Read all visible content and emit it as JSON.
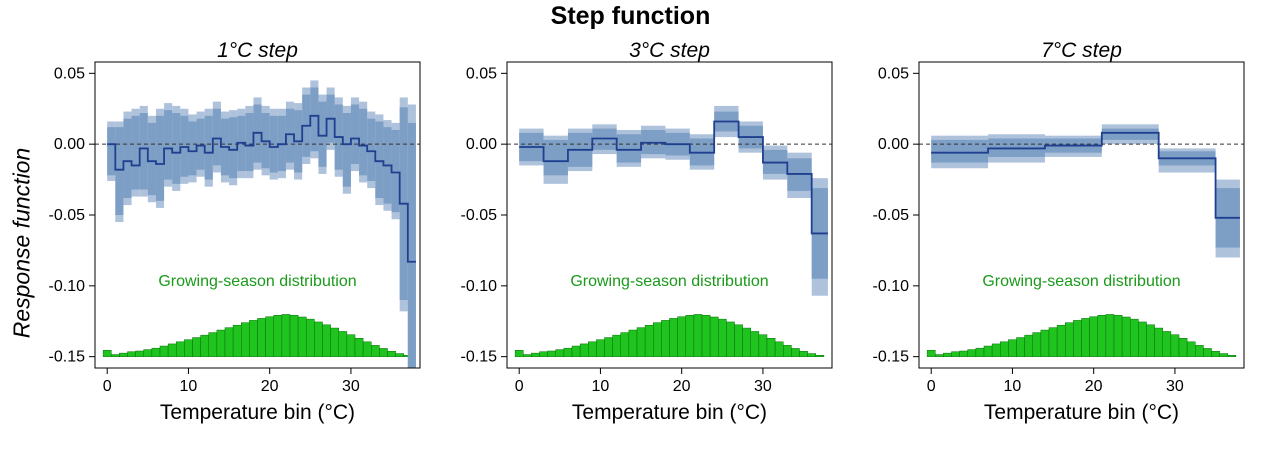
{
  "title": "Step function",
  "ylabel": "Response function",
  "colors": {
    "ci_outer": "#aec2dc",
    "ci_inner": "#7d9fc6",
    "line": "#1f3f8f",
    "bars": "#1fc41f",
    "bar_edge": "#0a6e0a",
    "dist_label": "#1a9a1a"
  },
  "chart_data": [
    {
      "type": "step",
      "title": "1°C step",
      "xlabel": "Temperature bin (°C)",
      "ylabel": "Response function",
      "xlim": [
        -1.5,
        38.5
      ],
      "ylim": [
        -0.158,
        0.058
      ],
      "xticks": [
        0,
        10,
        20,
        30
      ],
      "yticks": [
        0.05,
        0.0,
        -0.05,
        -0.1,
        -0.15
      ],
      "ytick_labels": [
        "0.05",
        "0.00",
        "-0.05",
        "-0.10",
        "-0.15"
      ],
      "reference_line": 0.0,
      "dist_label": "Growing-season distribution",
      "bins": [
        [
          0,
          1
        ],
        [
          1,
          2
        ],
        [
          2,
          3
        ],
        [
          3,
          4
        ],
        [
          4,
          5
        ],
        [
          5,
          6
        ],
        [
          6,
          7
        ],
        [
          7,
          8
        ],
        [
          8,
          9
        ],
        [
          9,
          10
        ],
        [
          10,
          11
        ],
        [
          11,
          12
        ],
        [
          12,
          13
        ],
        [
          13,
          14
        ],
        [
          14,
          15
        ],
        [
          15,
          16
        ],
        [
          16,
          17
        ],
        [
          17,
          18
        ],
        [
          18,
          19
        ],
        [
          19,
          20
        ],
        [
          20,
          21
        ],
        [
          21,
          22
        ],
        [
          22,
          23
        ],
        [
          23,
          24
        ],
        [
          24,
          25
        ],
        [
          25,
          26
        ],
        [
          26,
          27
        ],
        [
          27,
          28
        ],
        [
          28,
          29
        ],
        [
          29,
          30
        ],
        [
          30,
          31
        ],
        [
          31,
          32
        ],
        [
          32,
          33
        ],
        [
          33,
          34
        ],
        [
          34,
          35
        ],
        [
          35,
          36
        ],
        [
          36,
          37
        ],
        [
          37,
          38
        ]
      ],
      "values": [
        0.0,
        -0.018,
        -0.012,
        -0.015,
        -0.003,
        -0.012,
        -0.014,
        -0.003,
        -0.006,
        -0.002,
        -0.005,
        -0.001,
        -0.006,
        0.004,
        -0.002,
        -0.004,
        0.001,
        -0.001,
        0.008,
        0.002,
        -0.002,
        0.0,
        0.007,
        0.002,
        0.013,
        0.02,
        0.006,
        0.018,
        0.005,
        0.0,
        0.004,
        -0.001,
        -0.005,
        -0.012,
        -0.015,
        -0.02,
        -0.042,
        -0.083
      ],
      "ci_inner_upper": [
        0.012,
        0.012,
        0.018,
        0.02,
        0.022,
        0.015,
        0.02,
        0.024,
        0.022,
        0.02,
        0.016,
        0.018,
        0.02,
        0.025,
        0.018,
        0.019,
        0.02,
        0.022,
        0.028,
        0.022,
        0.02,
        0.02,
        0.025,
        0.024,
        0.035,
        0.04,
        0.03,
        0.035,
        0.028,
        0.022,
        0.028,
        0.025,
        0.018,
        0.016,
        0.012,
        0.01,
        0.026,
        0.015
      ],
      "ci_inner_lower": [
        -0.022,
        -0.05,
        -0.038,
        -0.032,
        -0.032,
        -0.036,
        -0.04,
        -0.025,
        -0.028,
        -0.023,
        -0.022,
        -0.018,
        -0.025,
        -0.015,
        -0.022,
        -0.024,
        -0.019,
        -0.019,
        -0.013,
        -0.017,
        -0.02,
        -0.019,
        -0.013,
        -0.02,
        -0.009,
        -0.005,
        -0.016,
        0.001,
        -0.018,
        -0.03,
        -0.014,
        -0.022,
        -0.026,
        -0.038,
        -0.042,
        -0.048,
        -0.11,
        -0.158
      ],
      "ci_outer_upper": [
        0.016,
        0.016,
        0.023,
        0.025,
        0.027,
        0.02,
        0.025,
        0.029,
        0.027,
        0.025,
        0.021,
        0.023,
        0.025,
        0.03,
        0.023,
        0.024,
        0.025,
        0.027,
        0.033,
        0.027,
        0.025,
        0.025,
        0.03,
        0.029,
        0.04,
        0.045,
        0.035,
        0.04,
        0.033,
        0.027,
        0.033,
        0.03,
        0.023,
        0.021,
        0.017,
        0.015,
        0.033,
        0.028
      ],
      "ci_outer_lower": [
        -0.026,
        -0.055,
        -0.043,
        -0.037,
        -0.037,
        -0.041,
        -0.045,
        -0.03,
        -0.033,
        -0.028,
        -0.027,
        -0.023,
        -0.03,
        -0.02,
        -0.027,
        -0.029,
        -0.024,
        -0.024,
        -0.018,
        -0.022,
        -0.025,
        -0.024,
        -0.018,
        -0.025,
        -0.014,
        -0.01,
        -0.021,
        -0.004,
        -0.023,
        -0.035,
        -0.019,
        -0.027,
        -0.031,
        -0.043,
        -0.047,
        -0.053,
        -0.118,
        -0.158
      ]
    },
    {
      "type": "step",
      "title": "3°C step",
      "xlabel": "Temperature bin (°C)",
      "ylabel": "",
      "xlim": [
        -1.5,
        38.5
      ],
      "ylim": [
        -0.158,
        0.058
      ],
      "xticks": [
        0,
        10,
        20,
        30
      ],
      "yticks": [
        0.05,
        0.0,
        -0.05,
        -0.1,
        -0.15
      ],
      "ytick_labels": [
        "0.05",
        "0.00",
        "-0.05",
        "-0.10",
        "-0.15"
      ],
      "reference_line": 0.0,
      "dist_label": "Growing-season distribution",
      "bins": [
        [
          0,
          3
        ],
        [
          3,
          6
        ],
        [
          6,
          9
        ],
        [
          9,
          12
        ],
        [
          12,
          15
        ],
        [
          15,
          18
        ],
        [
          18,
          21
        ],
        [
          21,
          24
        ],
        [
          24,
          27
        ],
        [
          27,
          30
        ],
        [
          30,
          33
        ],
        [
          33,
          36
        ],
        [
          36,
          38
        ]
      ],
      "values": [
        -0.002,
        -0.012,
        -0.004,
        0.004,
        -0.004,
        0.001,
        0.0,
        -0.006,
        0.016,
        0.005,
        -0.013,
        -0.021,
        -0.063
      ],
      "ci_inner_upper": [
        0.008,
        0.003,
        0.008,
        0.011,
        0.007,
        0.01,
        0.008,
        0.004,
        0.023,
        0.013,
        -0.004,
        -0.01,
        -0.031
      ],
      "ci_inner_lower": [
        -0.012,
        -0.022,
        -0.016,
        -0.004,
        -0.013,
        -0.007,
        -0.008,
        -0.015,
        0.009,
        -0.003,
        -0.021,
        -0.033,
        -0.095
      ],
      "ci_outer_upper": [
        0.011,
        0.006,
        0.011,
        0.014,
        0.01,
        0.013,
        0.011,
        0.007,
        0.027,
        0.016,
        -0.001,
        -0.006,
        -0.024
      ],
      "ci_outer_lower": [
        -0.015,
        -0.028,
        -0.019,
        -0.007,
        -0.016,
        -0.01,
        -0.011,
        -0.018,
        0.005,
        -0.006,
        -0.025,
        -0.038,
        -0.107
      ]
    },
    {
      "type": "step",
      "title": "7°C step",
      "xlabel": "Temperature bin (°C)",
      "ylabel": "",
      "xlim": [
        -1.5,
        38.5
      ],
      "ylim": [
        -0.158,
        0.058
      ],
      "xticks": [
        0,
        10,
        20,
        30
      ],
      "yticks": [
        0.05,
        0.0,
        -0.05,
        -0.1,
        -0.15
      ],
      "ytick_labels": [
        "0.05",
        "0.00",
        "-0.05",
        "-0.10",
        "-0.15"
      ],
      "reference_line": 0.0,
      "dist_label": "Growing-season distribution",
      "bins": [
        [
          0,
          7
        ],
        [
          7,
          14
        ],
        [
          14,
          21
        ],
        [
          21,
          28
        ],
        [
          28,
          35
        ],
        [
          35,
          38
        ]
      ],
      "values": [
        -0.006,
        -0.003,
        -0.001,
        0.008,
        -0.01,
        -0.052
      ],
      "ci_inner_upper": [
        0.003,
        0.004,
        0.004,
        0.011,
        -0.005,
        -0.031
      ],
      "ci_inner_lower": [
        -0.013,
        -0.009,
        -0.006,
        0.003,
        -0.015,
        -0.073
      ],
      "ci_outer_upper": [
        0.006,
        0.007,
        0.006,
        0.014,
        -0.003,
        -0.025
      ],
      "ci_outer_lower": [
        -0.017,
        -0.013,
        -0.009,
        0.0,
        -0.02,
        -0.08
      ]
    }
  ],
  "distribution": {
    "name": "Growing-season distribution",
    "bin_centers": [
      0,
      1,
      2,
      3,
      4,
      5,
      6,
      7,
      8,
      9,
      10,
      11,
      12,
      13,
      14,
      15,
      16,
      17,
      18,
      19,
      20,
      21,
      22,
      23,
      24,
      25,
      26,
      27,
      28,
      29,
      30,
      31,
      32,
      33,
      34,
      35,
      36,
      37
    ],
    "heights": [
      0.0045,
      0.0015,
      0.0025,
      0.0035,
      0.004,
      0.005,
      0.006,
      0.0075,
      0.009,
      0.0105,
      0.012,
      0.0135,
      0.0152,
      0.017,
      0.0188,
      0.0205,
      0.0222,
      0.024,
      0.0256,
      0.027,
      0.0282,
      0.0292,
      0.0298,
      0.0292,
      0.028,
      0.0265,
      0.0245,
      0.0225,
      0.0202,
      0.0178,
      0.0155,
      0.013,
      0.0105,
      0.008,
      0.0058,
      0.0038,
      0.0022,
      0.001
    ],
    "baseline": -0.15
  }
}
